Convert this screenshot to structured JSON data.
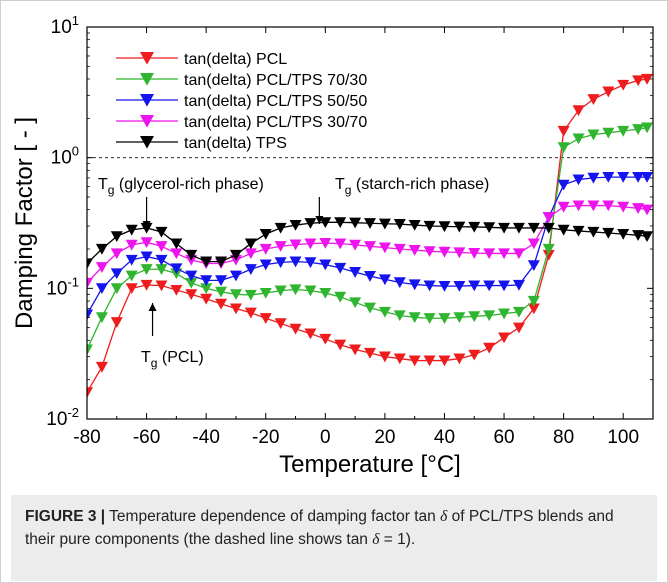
{
  "chart_data": {
    "type": "line",
    "xlabel": "Temperature [°C]",
    "ylabel": "Damping Factor [ - ]",
    "xlim": [
      -80,
      110
    ],
    "ylim": [
      0.01,
      10
    ],
    "yscale": "log",
    "x_ticks": [
      "-80",
      "-60",
      "-40",
      "-20",
      "0",
      "20",
      "40",
      "60",
      "80",
      "100"
    ],
    "y_ticks": [
      {
        "base": "10",
        "exp": "1"
      },
      {
        "base": "10",
        "exp": "0"
      },
      {
        "base": "10",
        "exp": "-1"
      },
      {
        "base": "10",
        "exp": "-2"
      }
    ],
    "reference_line": {
      "y": 1.0,
      "style": "dashed"
    },
    "legend_position": "top-left",
    "annotations": [
      {
        "main": "T",
        "sub": "g",
        "rest": " (glycerol-rich phase)",
        "arrow_to_x": -60
      },
      {
        "main": "T",
        "sub": "g",
        "rest": " (starch-rich phase)",
        "arrow_to_x": -2
      },
      {
        "main": "T",
        "sub": "g",
        "rest": " (PCL)",
        "arrow_to_x": -58
      }
    ],
    "series": [
      {
        "name": "tan(delta) PCL",
        "color": "#ee1c1c",
        "points": [
          [
            -82,
            0.013
          ],
          [
            -80,
            0.016
          ],
          [
            -75,
            0.025
          ],
          [
            -70,
            0.055
          ],
          [
            -65,
            0.1
          ],
          [
            -60,
            0.106
          ],
          [
            -55,
            0.105
          ],
          [
            -50,
            0.097
          ],
          [
            -45,
            0.09
          ],
          [
            -40,
            0.083
          ],
          [
            -35,
            0.076
          ],
          [
            -30,
            0.07
          ],
          [
            -25,
            0.065
          ],
          [
            -20,
            0.059
          ],
          [
            -15,
            0.054
          ],
          [
            -10,
            0.049
          ],
          [
            -5,
            0.045
          ],
          [
            0,
            0.041
          ],
          [
            5,
            0.037
          ],
          [
            10,
            0.034
          ],
          [
            15,
            0.032
          ],
          [
            20,
            0.03
          ],
          [
            25,
            0.029
          ],
          [
            30,
            0.028
          ],
          [
            35,
            0.028
          ],
          [
            40,
            0.028
          ],
          [
            45,
            0.029
          ],
          [
            50,
            0.031
          ],
          [
            55,
            0.035
          ],
          [
            60,
            0.042
          ],
          [
            65,
            0.05
          ],
          [
            70,
            0.07
          ],
          [
            75,
            0.18
          ],
          [
            80,
            1.6
          ],
          [
            85,
            2.3
          ],
          [
            90,
            2.8
          ],
          [
            95,
            3.2
          ],
          [
            100,
            3.6
          ],
          [
            105,
            3.9
          ],
          [
            108,
            4.0
          ]
        ]
      },
      {
        "name": "tan(delta) PCL/TPS 70/30",
        "color": "#2fb52f",
        "points": [
          [
            -82,
            0.03
          ],
          [
            -80,
            0.034
          ],
          [
            -75,
            0.06
          ],
          [
            -70,
            0.1
          ],
          [
            -65,
            0.125
          ],
          [
            -60,
            0.14
          ],
          [
            -55,
            0.14
          ],
          [
            -50,
            0.13
          ],
          [
            -45,
            0.11
          ],
          [
            -40,
            0.1
          ],
          [
            -35,
            0.094
          ],
          [
            -30,
            0.09
          ],
          [
            -25,
            0.089
          ],
          [
            -20,
            0.092
          ],
          [
            -15,
            0.096
          ],
          [
            -10,
            0.098
          ],
          [
            -5,
            0.096
          ],
          [
            0,
            0.092
          ],
          [
            5,
            0.086
          ],
          [
            10,
            0.078
          ],
          [
            15,
            0.071
          ],
          [
            20,
            0.066
          ],
          [
            25,
            0.062
          ],
          [
            30,
            0.06
          ],
          [
            35,
            0.059
          ],
          [
            40,
            0.059
          ],
          [
            45,
            0.06
          ],
          [
            50,
            0.061
          ],
          [
            55,
            0.062
          ],
          [
            60,
            0.064
          ],
          [
            65,
            0.066
          ],
          [
            70,
            0.08
          ],
          [
            75,
            0.2
          ],
          [
            80,
            1.2
          ],
          [
            85,
            1.4
          ],
          [
            90,
            1.5
          ],
          [
            95,
            1.55
          ],
          [
            100,
            1.6
          ],
          [
            105,
            1.65
          ],
          [
            108,
            1.7
          ]
        ]
      },
      {
        "name": "tan(delta) PCL/TPS 50/50",
        "color": "#1414ee",
        "points": [
          [
            -82,
            0.058
          ],
          [
            -80,
            0.063
          ],
          [
            -75,
            0.1
          ],
          [
            -70,
            0.13
          ],
          [
            -65,
            0.165
          ],
          [
            -60,
            0.175
          ],
          [
            -55,
            0.165
          ],
          [
            -50,
            0.142
          ],
          [
            -45,
            0.125
          ],
          [
            -40,
            0.115
          ],
          [
            -35,
            0.115
          ],
          [
            -30,
            0.125
          ],
          [
            -25,
            0.14
          ],
          [
            -20,
            0.152
          ],
          [
            -15,
            0.158
          ],
          [
            -10,
            0.16
          ],
          [
            -5,
            0.158
          ],
          [
            0,
            0.152
          ],
          [
            5,
            0.143
          ],
          [
            10,
            0.133
          ],
          [
            15,
            0.124
          ],
          [
            20,
            0.117
          ],
          [
            25,
            0.111
          ],
          [
            30,
            0.107
          ],
          [
            35,
            0.105
          ],
          [
            40,
            0.104
          ],
          [
            45,
            0.104
          ],
          [
            50,
            0.105
          ],
          [
            55,
            0.105
          ],
          [
            60,
            0.105
          ],
          [
            65,
            0.106
          ],
          [
            70,
            0.15
          ],
          [
            75,
            0.35
          ],
          [
            80,
            0.62
          ],
          [
            85,
            0.68
          ],
          [
            90,
            0.7
          ],
          [
            95,
            0.71
          ],
          [
            100,
            0.71
          ],
          [
            105,
            0.71
          ],
          [
            108,
            0.71
          ]
        ]
      },
      {
        "name": "tan(delta) PCL/TPS 30/70",
        "color": "#ee14ee",
        "points": [
          [
            -82,
            0.1
          ],
          [
            -80,
            0.11
          ],
          [
            -75,
            0.145
          ],
          [
            -70,
            0.185
          ],
          [
            -65,
            0.215
          ],
          [
            -60,
            0.225
          ],
          [
            -55,
            0.21
          ],
          [
            -50,
            0.185
          ],
          [
            -45,
            0.165
          ],
          [
            -40,
            0.155
          ],
          [
            -35,
            0.155
          ],
          [
            -30,
            0.165
          ],
          [
            -25,
            0.185
          ],
          [
            -20,
            0.2
          ],
          [
            -15,
            0.21
          ],
          [
            -10,
            0.216
          ],
          [
            -5,
            0.22
          ],
          [
            0,
            0.222
          ],
          [
            5,
            0.22
          ],
          [
            10,
            0.215
          ],
          [
            15,
            0.21
          ],
          [
            20,
            0.205
          ],
          [
            25,
            0.2
          ],
          [
            30,
            0.196
          ],
          [
            35,
            0.192
          ],
          [
            40,
            0.19
          ],
          [
            45,
            0.188
          ],
          [
            50,
            0.186
          ],
          [
            55,
            0.185
          ],
          [
            60,
            0.185
          ],
          [
            65,
            0.185
          ],
          [
            70,
            0.22
          ],
          [
            75,
            0.35
          ],
          [
            80,
            0.42
          ],
          [
            85,
            0.43
          ],
          [
            90,
            0.43
          ],
          [
            95,
            0.43
          ],
          [
            100,
            0.42
          ],
          [
            105,
            0.41
          ],
          [
            108,
            0.4
          ]
        ]
      },
      {
        "name": "tan(delta) TPS",
        "color": "#000000",
        "points": [
          [
            -82,
            0.14
          ],
          [
            -80,
            0.155
          ],
          [
            -75,
            0.2
          ],
          [
            -70,
            0.25
          ],
          [
            -65,
            0.28
          ],
          [
            -60,
            0.29
          ],
          [
            -55,
            0.27
          ],
          [
            -50,
            0.22
          ],
          [
            -45,
            0.18
          ],
          [
            -40,
            0.16
          ],
          [
            -35,
            0.16
          ],
          [
            -30,
            0.18
          ],
          [
            -25,
            0.22
          ],
          [
            -20,
            0.26
          ],
          [
            -15,
            0.29
          ],
          [
            -10,
            0.305
          ],
          [
            -5,
            0.315
          ],
          [
            0,
            0.32
          ],
          [
            5,
            0.32
          ],
          [
            10,
            0.318
          ],
          [
            15,
            0.315
          ],
          [
            20,
            0.312
          ],
          [
            25,
            0.31
          ],
          [
            30,
            0.305
          ],
          [
            35,
            0.3
          ],
          [
            40,
            0.298
          ],
          [
            45,
            0.296
          ],
          [
            50,
            0.295
          ],
          [
            55,
            0.293
          ],
          [
            60,
            0.29
          ],
          [
            65,
            0.29
          ],
          [
            70,
            0.29
          ],
          [
            75,
            0.29
          ],
          [
            80,
            0.28
          ],
          [
            85,
            0.275
          ],
          [
            90,
            0.27
          ],
          [
            95,
            0.265
          ],
          [
            100,
            0.26
          ],
          [
            105,
            0.255
          ],
          [
            108,
            0.25
          ]
        ]
      }
    ]
  },
  "caption": {
    "label": "FIGURE 3 |",
    "text_1": " Temperature dependence of damping factor tan ",
    "delta_1": "δ",
    "text_2": " of PCL/TPS blends and their pure components (the dashed line shows tan ",
    "delta_2": "δ",
    "text_3": " = 1)."
  }
}
